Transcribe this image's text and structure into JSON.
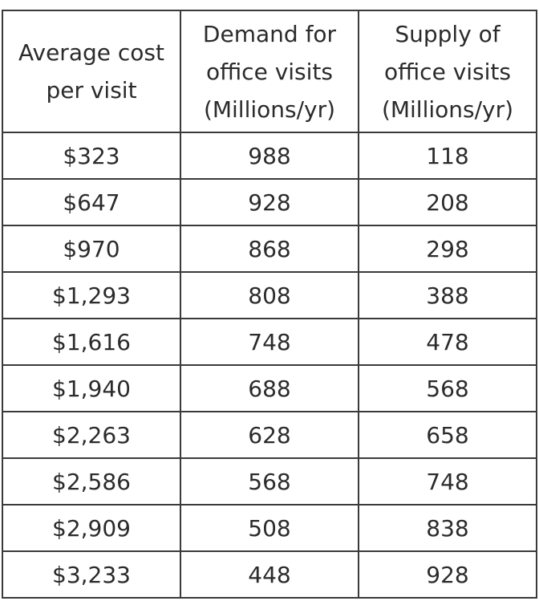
{
  "table": {
    "headers": [
      [
        "Average cost",
        "per visit"
      ],
      [
        "Demand for",
        "office visits",
        "(Millions/yr)"
      ],
      [
        "Supply of",
        "office visits",
        "(Millions/yr)"
      ]
    ],
    "rows": [
      [
        "$323",
        "988",
        "118"
      ],
      [
        "$647",
        "928",
        "208"
      ],
      [
        "$970",
        "868",
        "298"
      ],
      [
        "$1,293",
        "808",
        "388"
      ],
      [
        "$1,616",
        "748",
        "478"
      ],
      [
        "$1,940",
        "688",
        "568"
      ],
      [
        "$2,263",
        "628",
        "658"
      ],
      [
        "$2,586",
        "568",
        "748"
      ],
      [
        "$2,909",
        "508",
        "838"
      ],
      [
        "$3,233",
        "448",
        "928"
      ]
    ]
  }
}
